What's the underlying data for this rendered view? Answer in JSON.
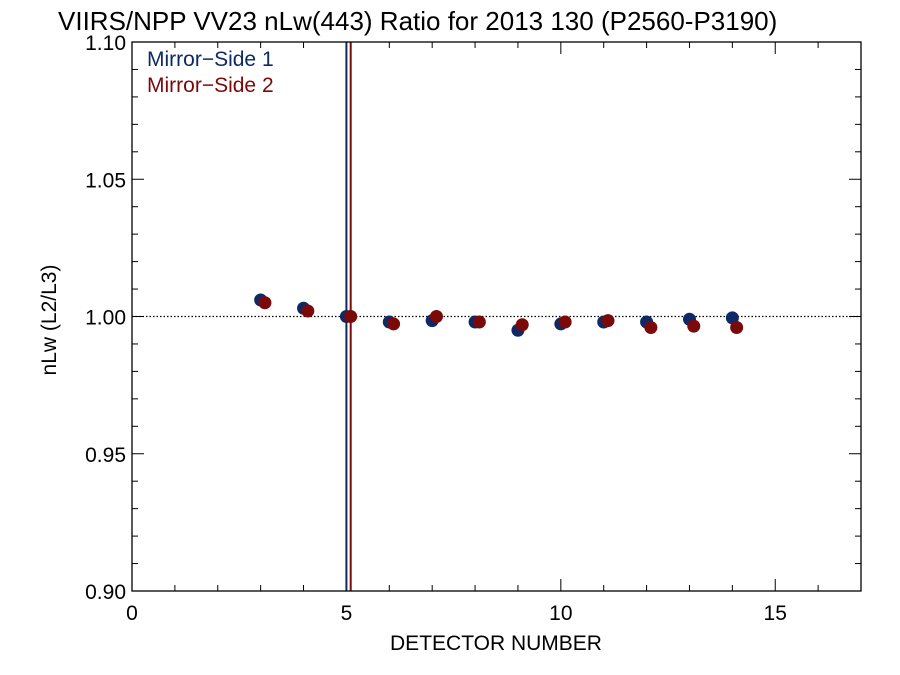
{
  "chart_data": {
    "type": "scatter",
    "title": "VIIRS/NPP VV23 nLw(443) Ratio for 2013 130 (P2560-P3190)",
    "xlabel": "DETECTOR NUMBER",
    "ylabel": "nLw (L2/L3)",
    "xlim": [
      0,
      17
    ],
    "ylim": [
      0.9,
      1.1
    ],
    "x_ticks": [
      0,
      5,
      10,
      15
    ],
    "x_tick_labels": [
      "0",
      "5",
      "10",
      "15"
    ],
    "y_ticks": [
      0.9,
      0.95,
      1.0,
      1.05,
      1.1
    ],
    "y_tick_labels": [
      "0.90",
      "0.95",
      "1.00",
      "1.05",
      "1.10"
    ],
    "reference_line_y": 1.0,
    "legend_position": "top-left",
    "series": [
      {
        "name": "Mirror−Side 1",
        "color": "#0d2a66",
        "x": [
          3,
          4,
          5,
          6,
          7,
          8,
          9,
          10,
          11,
          12,
          13,
          14
        ],
        "y": [
          1.006,
          1.003,
          1.0,
          0.998,
          0.9985,
          0.998,
          0.995,
          0.9973,
          0.998,
          0.998,
          0.999,
          0.9995
        ],
        "vline_x": 5.0
      },
      {
        "name": "Mirror−Side 2",
        "color": "#7a0a0a",
        "x": [
          3.1,
          4.1,
          5.1,
          6.1,
          7.1,
          8.1,
          9.1,
          10.1,
          11.1,
          12.1,
          13.1,
          14.1
        ],
        "y": [
          1.005,
          1.002,
          1.0,
          0.9973,
          1.0,
          0.998,
          0.997,
          0.998,
          0.9985,
          0.996,
          0.9965,
          0.996
        ],
        "vline_x": 5.1
      }
    ]
  }
}
